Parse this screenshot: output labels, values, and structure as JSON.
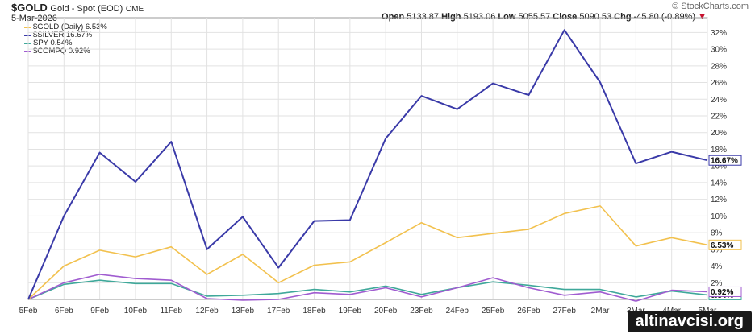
{
  "header": {
    "ticker": "$GOLD",
    "description": "Gold - Spot (EOD)",
    "exchange": "CME",
    "date": "5-Mar-2026",
    "credit": "© StockCharts.com",
    "open_label": "Open",
    "open": "5133.87",
    "high_label": "High",
    "high": "5193.06",
    "low_label": "Low",
    "low": "5055.57",
    "close_label": "Close",
    "close": "5090.53",
    "chg_label": "Chg",
    "chg": "-45.80 (-0.89%)",
    "chg_arrow": "▼"
  },
  "legend": [
    {
      "label": "$GOLD (Daily) 6.53%",
      "color": "#f2c14e"
    },
    {
      "label": "$SILVER 16.67%",
      "color": "#3a3aa8"
    },
    {
      "label": "SPY 0.54%",
      "color": "#3fa89a"
    },
    {
      "label": "$COMPQ 0.92%",
      "color": "#a05cd0"
    }
  ],
  "watermark": "altinavcisi.org",
  "chart_data": {
    "type": "line",
    "categories": [
      "5Feb",
      "6Feb",
      "9Feb",
      "10Feb",
      "11Feb",
      "12Feb",
      "13Feb",
      "17Feb",
      "18Feb",
      "19Feb",
      "20Feb",
      "23Feb",
      "24Feb",
      "25Feb",
      "26Feb",
      "27Feb",
      "2Mar",
      "3Mar",
      "4Mar",
      "5Mar"
    ],
    "ylim": [
      0,
      33
    ],
    "yticks": [
      "2%",
      "4%",
      "6%",
      "8%",
      "10%",
      "12%",
      "14%",
      "16%",
      "18%",
      "20%",
      "22%",
      "24%",
      "26%",
      "28%",
      "30%",
      "32%"
    ],
    "ytick_values": [
      2,
      4,
      6,
      8,
      10,
      12,
      14,
      16,
      18,
      20,
      22,
      24,
      26,
      28,
      30,
      32
    ],
    "grid": true,
    "legend_position": "top-left",
    "series": [
      {
        "name": "$GOLD",
        "color": "#f2c14e",
        "values": [
          0,
          4.0,
          5.9,
          5.1,
          6.3,
          3.0,
          5.4,
          2.0,
          4.1,
          4.5,
          6.8,
          9.2,
          7.4,
          7.9,
          8.4,
          10.3,
          11.2,
          6.4,
          7.4,
          6.53
        ],
        "end_label": "6.53%"
      },
      {
        "name": "$SILVER",
        "color": "#3a3aa8",
        "values": [
          0,
          10.0,
          17.6,
          14.1,
          18.9,
          6.0,
          9.9,
          3.8,
          9.4,
          9.5,
          19.3,
          24.4,
          22.8,
          25.9,
          24.5,
          32.3,
          26.0,
          16.3,
          17.7,
          16.67
        ],
        "end_label": "16.67%"
      },
      {
        "name": "SPY",
        "color": "#3fa89a",
        "values": [
          0,
          1.8,
          2.3,
          1.9,
          1.9,
          0.4,
          0.5,
          0.7,
          1.2,
          0.9,
          1.6,
          0.6,
          1.4,
          2.1,
          1.7,
          1.2,
          1.2,
          0.3,
          1.0,
          0.54
        ],
        "end_label": "0.54%"
      },
      {
        "name": "$COMPQ",
        "color": "#a05cd0",
        "values": [
          0,
          2.0,
          3.0,
          2.5,
          2.3,
          0.1,
          -0.1,
          0.0,
          0.8,
          0.6,
          1.4,
          0.3,
          1.4,
          2.6,
          1.4,
          0.5,
          0.9,
          -0.2,
          1.1,
          0.92
        ],
        "end_label": "0.92%"
      }
    ]
  }
}
